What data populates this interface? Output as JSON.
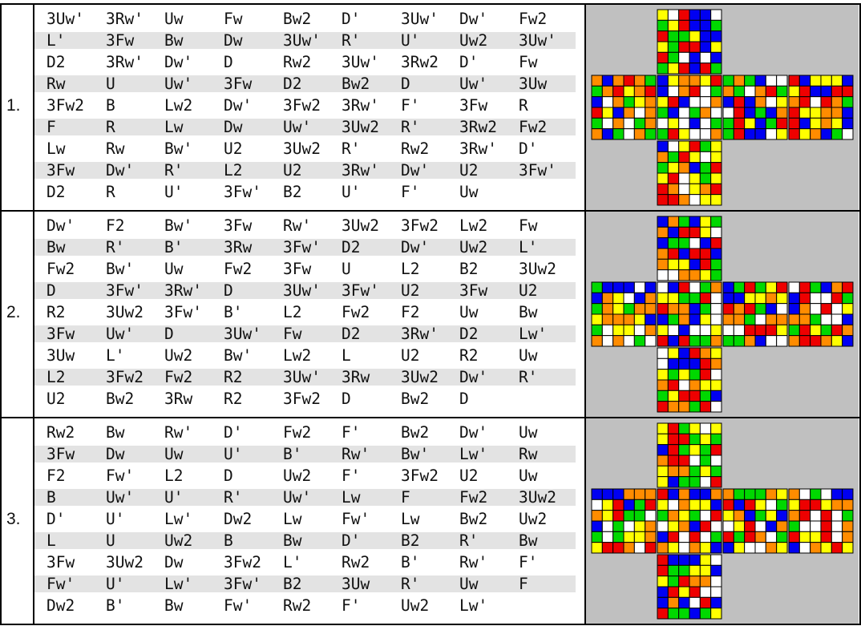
{
  "scrambles": [
    {
      "number": "1.",
      "lines": [
        [
          "3Uw'",
          "3Rw'",
          "Uw",
          "Fw",
          "Bw2",
          "D'",
          "3Uw'",
          "Dw'",
          "Fw2"
        ],
        [
          "L'",
          "3Fw",
          "Bw",
          "Dw",
          "3Uw'",
          "R'",
          "U'",
          "Uw2",
          "3Uw'"
        ],
        [
          "D2",
          "3Rw'",
          "Dw'",
          "D",
          "Rw2",
          "3Uw'",
          "3Rw2",
          "D'",
          "Fw"
        ],
        [
          "Rw",
          "U",
          "Uw'",
          "3Fw",
          "D2",
          "Bw2",
          "D",
          "Uw'",
          "3Uw"
        ],
        [
          "3Fw2",
          "B",
          "Lw2",
          "Dw'",
          "3Fw2",
          "3Rw'",
          "F'",
          "3Fw",
          "R"
        ],
        [
          "F",
          "R",
          "Lw",
          "Dw",
          "Uw'",
          "3Uw2",
          "R'",
          "3Rw2",
          "Fw2"
        ],
        [
          "Lw",
          "Rw",
          "Bw'",
          "U2",
          "3Uw2",
          "R'",
          "Rw2",
          "3Rw'",
          "D'"
        ],
        [
          "3Fw",
          "Dw'",
          "R'",
          "L2",
          "U2",
          "3Rw'",
          "Dw'",
          "U2",
          "3Fw'"
        ],
        [
          "D2",
          "R",
          "U'",
          "3Fw'",
          "B2",
          "U'",
          "F'",
          "Uw"
        ]
      ]
    },
    {
      "number": "2.",
      "lines": [
        [
          "Dw'",
          "F2",
          "Bw'",
          "3Fw",
          "Rw'",
          "3Uw2",
          "3Fw2",
          "Lw2",
          "Fw"
        ],
        [
          "Bw",
          "R'",
          "B'",
          "3Rw",
          "3Fw'",
          "D2",
          "Dw'",
          "Uw2",
          "L'"
        ],
        [
          "Fw2",
          "Bw'",
          "Uw",
          "Fw2",
          "3Fw",
          "U",
          "L2",
          "B2",
          "3Uw2"
        ],
        [
          "D",
          "3Fw'",
          "3Rw'",
          "D",
          "3Uw'",
          "3Fw'",
          "U2",
          "3Fw",
          "U2"
        ],
        [
          "R2",
          "3Uw2",
          "3Fw'",
          "B'",
          "L2",
          "Fw2",
          "F2",
          "Uw",
          "Bw"
        ],
        [
          "3Fw",
          "Uw'",
          "D",
          "3Uw'",
          "Fw",
          "D2",
          "3Rw'",
          "D2",
          "Lw'"
        ],
        [
          "3Uw",
          "L'",
          "Uw2",
          "Bw'",
          "Lw2",
          "L",
          "U2",
          "R2",
          "Uw"
        ],
        [
          "L2",
          "3Fw2",
          "Fw2",
          "R2",
          "3Uw'",
          "3Rw",
          "3Uw2",
          "Dw'",
          "R'"
        ],
        [
          "U2",
          "Bw2",
          "3Rw",
          "R2",
          "3Fw2",
          "D",
          "Bw2",
          "D"
        ]
      ]
    },
    {
      "number": "3.",
      "lines": [
        [
          "Rw2",
          "Bw",
          "Rw'",
          "D'",
          "Fw2",
          "F'",
          "Bw2",
          "Dw'",
          "Uw"
        ],
        [
          "3Fw",
          "Dw",
          "Uw",
          "U'",
          "B'",
          "Rw'",
          "Bw'",
          "Lw'",
          "Rw"
        ],
        [
          "F2",
          "Fw'",
          "L2",
          "D",
          "Uw2",
          "F'",
          "3Fw2",
          "U2",
          "Uw"
        ],
        [
          "B",
          "Uw'",
          "U'",
          "R'",
          "Uw'",
          "Lw",
          "F",
          "Fw2",
          "3Uw2"
        ],
        [
          "D'",
          "U'",
          "Lw'",
          "Dw2",
          "Lw",
          "Fw'",
          "Lw",
          "Bw2",
          "Uw2"
        ],
        [
          "L",
          "U",
          "Uw2",
          "B",
          "Bw",
          "D'",
          "B2",
          "R'",
          "Bw"
        ],
        [
          "3Fw",
          "3Uw2",
          "Dw",
          "3Fw2",
          "L'",
          "Rw2",
          "B'",
          "Rw'",
          "F'"
        ],
        [
          "Fw'",
          "U'",
          "Lw'",
          "3Fw'",
          "B2",
          "3Uw",
          "R'",
          "Uw",
          "F"
        ],
        [
          "Dw2",
          "B'",
          "Bw",
          "Fw'",
          "Rw2",
          "F'",
          "Uw2",
          "Lw'"
        ]
      ]
    }
  ],
  "sticker_colors": {
    "W": "#ffffff",
    "Y": "#ffff00",
    "G": "#00d800",
    "B": "#0000f2",
    "R": "#ee0000",
    "O": "#ff8c00"
  },
  "preview_background": "#c0c0c0",
  "nets": [
    {
      "U": [
        "YWRBBW",
        "GYRBBG",
        "RGGYBB",
        "YGRRBY",
        "RGWBWB",
        "GYRBRG"
      ],
      "L": [
        "OBOROG",
        "GORYOR",
        "BWOGYO",
        "RYBOWO",
        "GWOWGO",
        "OBGWOG"
      ],
      "F": [
        "BYOOYR",
        "BWORWG",
        "YRBWWO",
        "GBWGOW",
        "WYWBWG",
        "GRYWWO"
      ],
      "R": [
        "GOGBWW",
        "OGWORG",
        "BRBOWY",
        "WRBGBO",
        "GRYBGR",
        "GRBBWY"
      ],
      "B": [
        "RBYYYB",
        "YRBBRR",
        "ORWROG",
        "RYYOOB",
        "RBYOYB",
        "RYOBGW"
      ],
      "D": [
        "BWYRGY",
        "OGRYWY",
        "GYOBGR",
        "YRWYGY",
        "ROWYOR",
        "RROWYY"
      ]
    },
    {
      "U": [
        "BOGBYG",
        "OBRRYW",
        "BGGWBR",
        "ORBRRB",
        "OYYBRG",
        "WWOOYG"
      ],
      "L": [
        "GBBBWB",
        "BOYWBO",
        "GOYGOO",
        "YOOOYB",
        "GWYYWO",
        "OWOWGW"
      ],
      "F": [
        "WBRWGO",
        "YYGGRW",
        "ROOBGW",
        "BGOBYW",
        "YWBWWY",
        "RBRGGO"
      ],
      "R": [
        "BGRGYR",
        "BBYYOY",
        "RORGBW",
        "OOGWOO",
        "WWRRRY",
        "GGOBWW"
      ],
      "B": [
        "WRGBOR",
        "BRWWRG",
        "BOWRWY",
        "OOGWWB",
        "GRYGRO",
        "ORROYB"
      ],
      "D": [
        "WYBROY",
        "WBBBRO",
        "YGYGRW",
        "ORWOYY",
        "GYRRGB",
        "ROOGRW"
      ]
    },
    {
      "U": [
        "YRGYWY",
        "YRRGYG",
        "BRGYGR",
        "ORRWGW",
        "YOOGYG",
        "YBGGWR"
      ],
      "L": [
        "BBBOOO",
        "WYRBGR",
        "OYRGGW",
        "BWGWYO",
        "GWGYYO",
        "YRROWR"
      ],
      "F": [
        "RBOBBO",
        "YWOYYB",
        "GOYGWR",
        "WYOBRW",
        "BRWRWG",
        "OYWOYB"
      ],
      "R": [
        "OGGGOY",
        "RBRYWG",
        "YOBGYB",
        "WYRWBO",
        "RGROWG",
        "BYWWOY"
      ],
      "B": [
        "OWGWBB",
        "YRRYOO",
        "ORWRWG",
        "GWWRWO",
        "RYYRWO",
        "BWOYRY"
      ],
      "D": [
        "RBBBYW",
        "RGGYYB",
        "YGROOW",
        "BRYRWW",
        "BOBWRB",
        "RGGBGY"
      ]
    }
  ]
}
